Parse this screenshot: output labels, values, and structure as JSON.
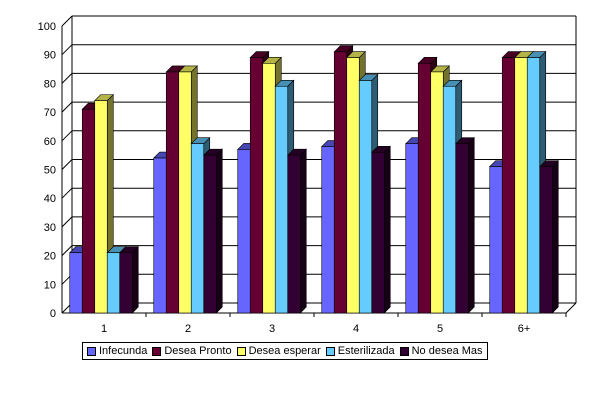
{
  "chart_data": {
    "type": "bar",
    "categories": [
      "1",
      "2",
      "3",
      "4",
      "5",
      "6+"
    ],
    "series": [
      {
        "name": "Infecunda",
        "color": "#6666ff",
        "values": [
          21,
          54,
          57,
          58,
          59,
          51
        ]
      },
      {
        "name": "Desea Pronto",
        "color": "#660033",
        "values": [
          71,
          84,
          89,
          91,
          87,
          89
        ]
      },
      {
        "name": "Desea esperar",
        "color": "#ffff66",
        "values": [
          74,
          84,
          87,
          89,
          84,
          89
        ]
      },
      {
        "name": "Esterilizada",
        "color": "#66ccff",
        "values": [
          21,
          59,
          79,
          81,
          79,
          89
        ]
      },
      {
        "name": "No desea Mas",
        "color": "#330033",
        "values": [
          21,
          55,
          55,
          56,
          59,
          51
        ]
      }
    ],
    "y_ticks": [
      "0",
      "10",
      "20",
      "30",
      "40",
      "50",
      "60",
      "70",
      "80",
      "90",
      "100"
    ],
    "ylim": [
      0,
      100
    ],
    "title": "",
    "xlabel": "",
    "ylabel": "",
    "grid": true,
    "legend_position": "bottom"
  }
}
